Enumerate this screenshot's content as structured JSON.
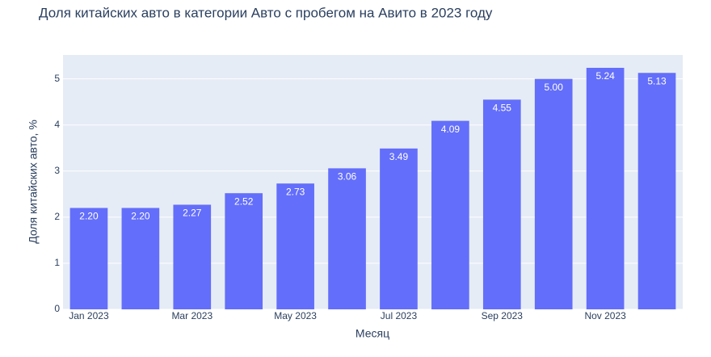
{
  "chart_data": {
    "type": "bar",
    "title": "Доля китайских авто в категории Авто с пробегом на Авито в 2023 году",
    "x_label": "Месяц",
    "y_label": "Доля китайских авто, %",
    "categories": [
      "Jan 2023",
      null,
      "Mar 2023",
      null,
      "May 2023",
      null,
      "Jul 2023",
      null,
      "Sep 2023",
      null,
      "Nov 2023",
      null
    ],
    "values": [
      2.2,
      2.2,
      2.27,
      2.52,
      2.73,
      3.06,
      3.49,
      4.09,
      4.55,
      5.0,
      5.24,
      5.13
    ],
    "value_labels": [
      "2.20",
      "2.20",
      "2.27",
      "2.52",
      "2.73",
      "3.06",
      "3.49",
      "4.09",
      "4.55",
      "5.00",
      "5.24",
      "5.13"
    ],
    "color": "#636efa",
    "ylim": [
      0,
      5.52
    ],
    "yticks": [
      0,
      1,
      2,
      3,
      4,
      5
    ],
    "grid": true
  }
}
